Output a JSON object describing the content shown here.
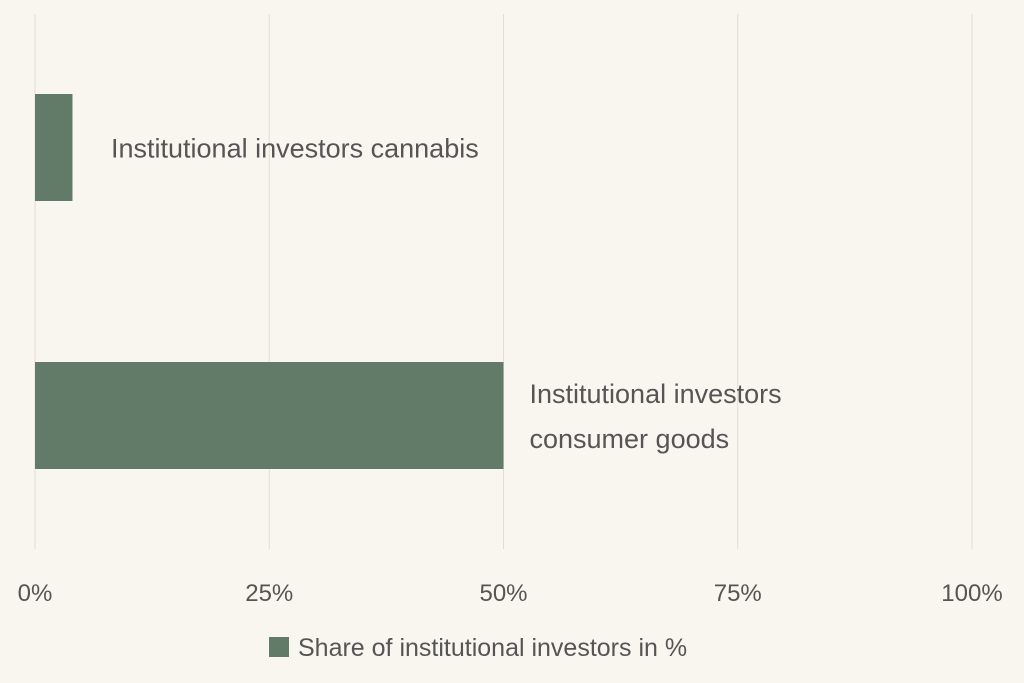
{
  "chart_data": {
    "type": "bar",
    "orientation": "horizontal",
    "categories": [
      [
        "Institutional investors cannabis"
      ],
      [
        "Institutional investors",
        "consumer goods"
      ]
    ],
    "series": [
      {
        "name": "Share of institutional investors in %",
        "values": [
          4,
          50
        ],
        "color": "#627a68"
      }
    ],
    "xlim": [
      0,
      100
    ],
    "x_ticks": [
      0,
      25,
      50,
      75,
      100
    ],
    "x_tick_labels": [
      "0%",
      "25%",
      "50%",
      "75%",
      "100%"
    ],
    "grid": true,
    "legend_position": "bottom-center",
    "title": "",
    "xlabel": "",
    "ylabel": ""
  }
}
